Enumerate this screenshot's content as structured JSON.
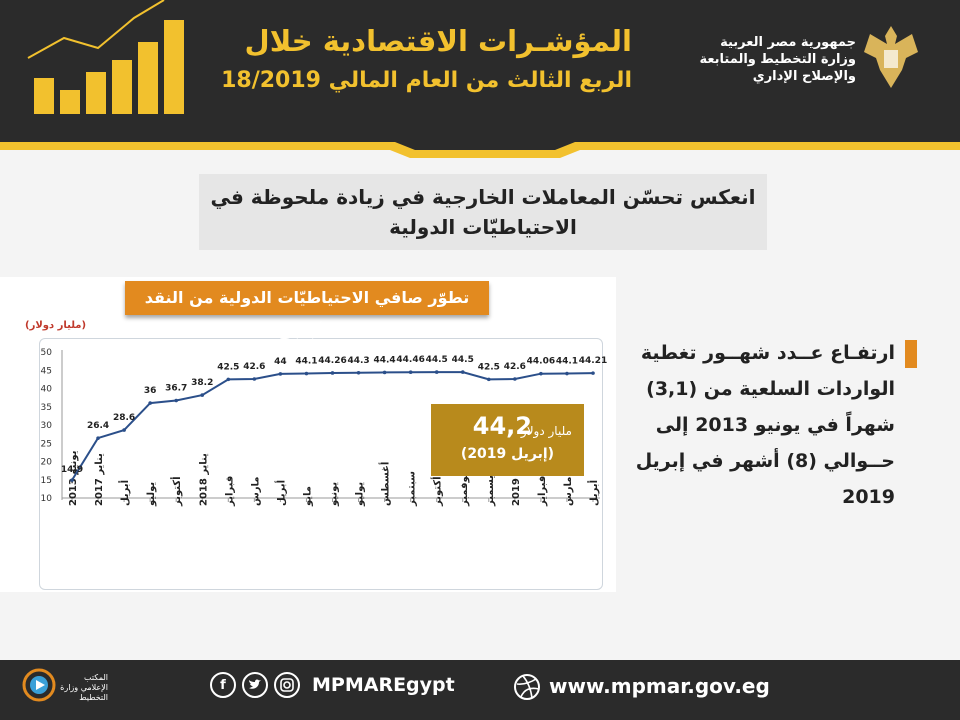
{
  "header": {
    "title": "المؤشـرات الاقتصادية خلال",
    "subtitle": "الربع الثالث من العام المالي 18/2019",
    "ministry": [
      "جمهورية مصر العربية",
      "وزارة التخطيط والمتابعة",
      "والإصلاح الإداري"
    ]
  },
  "headline": {
    "line1": "انعكس تحسّن المعاملات الخارجية في زيادة ملحوظة في",
    "line2": "الاحتياطيّات الدولية"
  },
  "chart_data": {
    "type": "line",
    "title": "تطوّر صافي الاحتياطيّات الدولية من النقد الأجنبي",
    "ylabel": "(مليار دولار)",
    "xlabel": "",
    "ylim": [
      10,
      50
    ],
    "yticks": [
      10,
      15,
      20,
      25,
      30,
      35,
      40,
      45,
      50
    ],
    "grid": false,
    "categories": [
      "يونيو 2013",
      "يناير 2017",
      "أبريل",
      "يوليو",
      "أكتوبر",
      "يناير 2018",
      "فبراير",
      "مارس",
      "أبريل",
      "مايو",
      "يونيو",
      "يوليو",
      "أغسطس",
      "سبتمبر",
      "أكتوبر",
      "نوفمبر",
      "ديسمبر",
      "يناير 2019",
      "فبراير",
      "مارس",
      "أبريل"
    ],
    "series": [
      {
        "values": [
          14.9,
          26.4,
          28.6,
          36,
          36.7,
          38.2,
          42.5,
          42.6,
          44,
          44.1,
          44.26,
          44.3,
          44.4,
          44.46,
          44.5,
          44.5,
          42.5,
          42.6,
          44.06,
          44.1,
          44.21
        ],
        "labels": [
          "14.9",
          "26.4",
          "28.6",
          "36",
          "36.7",
          "38.2",
          "42.5",
          "42.6",
          "44",
          "44.1",
          "44.26",
          "44.3",
          "44.4",
          "44.46",
          "44.5",
          "44.5",
          "42.5",
          "42.6",
          "44.06",
          "44.1",
          "44.21"
        ]
      }
    ],
    "annotation": {
      "value": "44,2",
      "unit": "مليار دولار",
      "date": "(إبريل 2019)"
    }
  },
  "side": {
    "text": "ارتفـاع عــدد شهــور تغطية الواردات السلعية من (3,1) شهراً في يونيو 2013 إلى حــوالي (8) أشهر في إبريل 2019"
  },
  "footer": {
    "media": "المكتب الإعلامي وزارة التخطيط",
    "handle": "MPMAREgypt",
    "website": "www.mpmar.gov.eg",
    "social_icons": [
      "facebook-icon",
      "twitter-icon",
      "instagram-icon"
    ]
  },
  "colors": {
    "accent": "#e28a1f",
    "gold": "#f2c12e",
    "line": "#2b4f8a",
    "dark": "#2b2b2b"
  }
}
